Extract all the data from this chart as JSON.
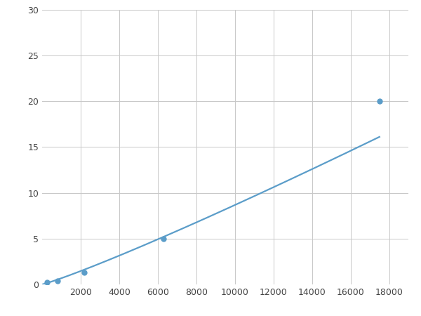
{
  "x_points": [
    250,
    800,
    2200,
    6300,
    17500
  ],
  "y_points": [
    0.2,
    0.4,
    1.3,
    5.0,
    20.0
  ],
  "line_color": "#5b9dc9",
  "marker_color": "#5b9dc9",
  "marker_size": 6,
  "line_width": 1.6,
  "xlim": [
    0,
    19000
  ],
  "ylim": [
    0,
    30
  ],
  "xticks": [
    2000,
    4000,
    6000,
    8000,
    10000,
    12000,
    14000,
    16000,
    18000
  ],
  "yticks": [
    0,
    5,
    10,
    15,
    20,
    25,
    30
  ],
  "grid_color": "#c8c8c8",
  "background_color": "#ffffff",
  "figure_width": 6.0,
  "figure_height": 4.5,
  "dpi": 100
}
